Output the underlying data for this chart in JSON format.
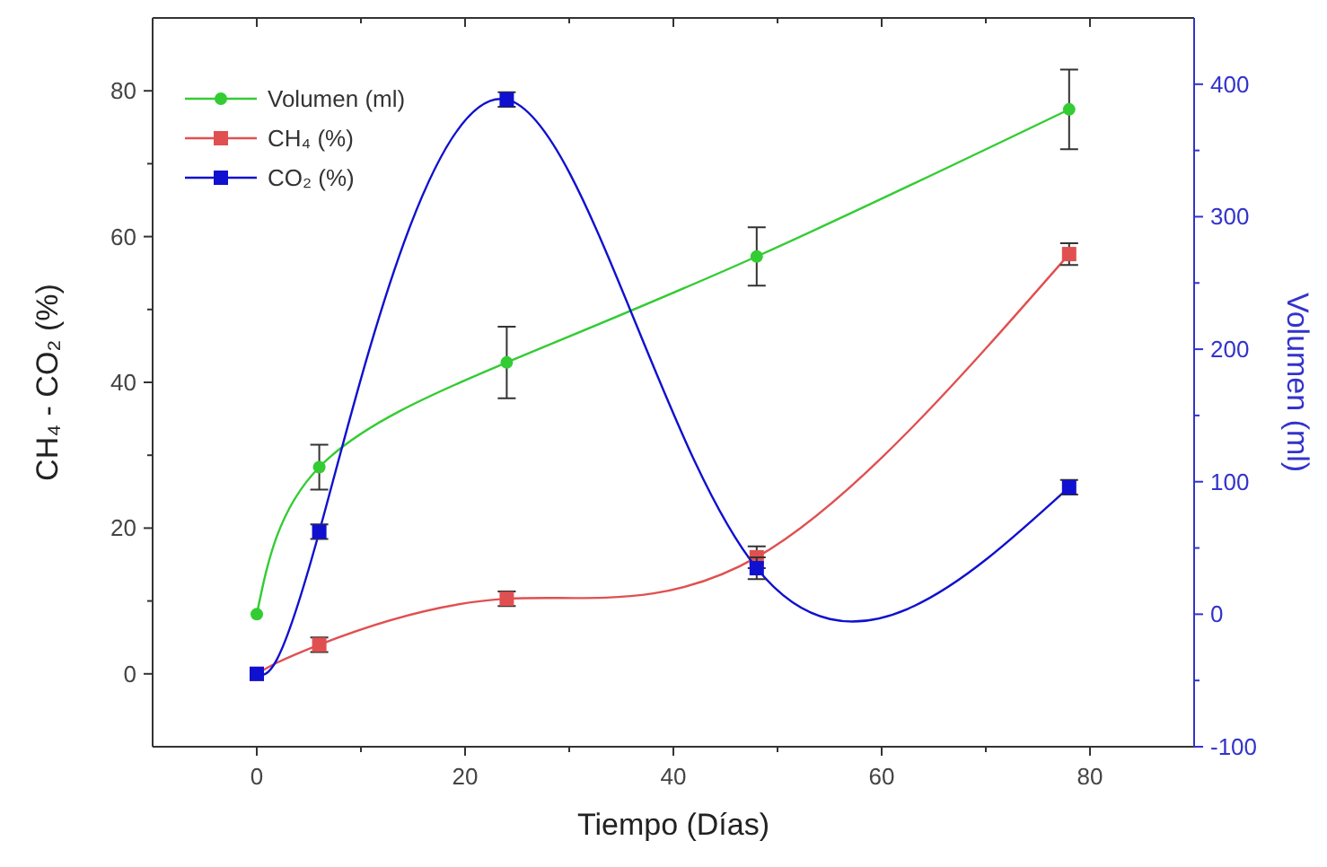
{
  "chart_data": {
    "type": "line",
    "xlabel": "Tiempo (Días)",
    "ylabel": "CH₄ - CO₂ (%)",
    "y2label": "Volumen (ml)",
    "x": [
      0,
      6,
      24,
      48,
      78
    ],
    "xlim": [
      -10,
      90
    ],
    "xticks": [
      0,
      {
        "value": 10,
        "label": null
      },
      20,
      {
        "value": 30,
        "label": null
      },
      40,
      {
        "value": 50,
        "label": null
      },
      60,
      {
        "value": 70,
        "label": null
      },
      80
    ],
    "ylim": [
      -10,
      90
    ],
    "yticks": [
      0,
      {
        "value": 10,
        "label": null
      },
      20,
      {
        "value": 30,
        "label": null
      },
      40,
      {
        "value": 50,
        "label": null
      },
      60,
      {
        "value": 70,
        "label": null
      },
      80
    ],
    "y2lim": [
      -100,
      450
    ],
    "y2ticks": [
      -100,
      {
        "value": -50,
        "label": null
      },
      0,
      {
        "value": 50,
        "label": null
      },
      100,
      {
        "value": 150,
        "label": null
      },
      200,
      {
        "value": 250,
        "label": null
      },
      300,
      {
        "value": 350,
        "label": null
      },
      400
    ],
    "series": [
      {
        "name": "Volumen (ml)",
        "color": "#33cc33",
        "axis": "y2",
        "marker": "circle",
        "values": [
          0,
          111,
          190,
          270,
          381
        ],
        "errors": [
          null,
          17,
          27,
          22,
          30
        ]
      },
      {
        "name": "CH₄ (%)",
        "color": "#e05050",
        "marker": "square",
        "values": [
          0,
          4,
          10.3,
          16,
          57.6
        ],
        "errors": [
          null,
          1,
          1,
          1.5,
          1.5
        ]
      },
      {
        "name": "CO₂ (%)",
        "color": "#1010d0",
        "marker": "square",
        "values": [
          0,
          19.5,
          78.8,
          14.5,
          25.6
        ],
        "errors": [
          null,
          1,
          1,
          1.5,
          1
        ]
      }
    ],
    "legend": "top left",
    "grid": false,
    "line_style": "solid"
  }
}
